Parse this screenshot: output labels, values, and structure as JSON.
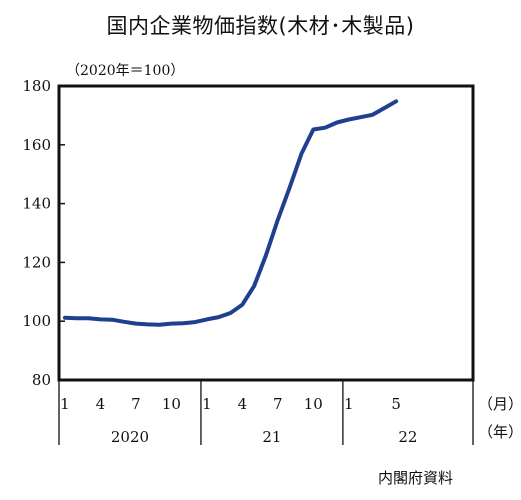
{
  "title": "国内企業物価指数(木材･木製品)",
  "unit_note": "（2020年＝100）",
  "source": "内閣府資料",
  "chart_data": {
    "type": "line",
    "series": [
      {
        "name": "",
        "color": "#1f3f8f",
        "values": [
          101.2,
          101.0,
          101.0,
          100.6,
          100.5,
          99.8,
          99.2,
          98.9,
          98.8,
          99.2,
          99.3,
          99.7,
          100.6,
          101.4,
          102.8,
          105.6,
          112.0,
          122.5,
          134.5,
          145.5,
          157.0,
          165.2,
          165.8,
          167.6,
          168.6,
          169.4,
          170.2,
          172.5,
          174.8
        ]
      }
    ],
    "x_tick_labels": [
      {
        "label": "1",
        "index": 0
      },
      {
        "label": "4",
        "index": 3
      },
      {
        "label": "7",
        "index": 6
      },
      {
        "label": "10",
        "index": 9
      },
      {
        "label": "1",
        "index": 12
      },
      {
        "label": "4",
        "index": 15
      },
      {
        "label": "7",
        "index": 18
      },
      {
        "label": "10",
        "index": 21
      },
      {
        "label": "1",
        "index": 24
      },
      {
        "label": "5",
        "index": 28
      }
    ],
    "years": [
      {
        "label": "2020",
        "start": 0,
        "end": 11
      },
      {
        "label": "21",
        "start": 12,
        "end": 23
      },
      {
        "label": "22",
        "start": 24,
        "end": 34
      }
    ],
    "x_unit_month": "（月）",
    "x_unit_year": "（年）",
    "y_ticks": [
      "80",
      "100",
      "120",
      "140",
      "160",
      "180"
    ],
    "ylim": [
      80,
      180
    ],
    "n_slots": 35,
    "grid": false
  }
}
